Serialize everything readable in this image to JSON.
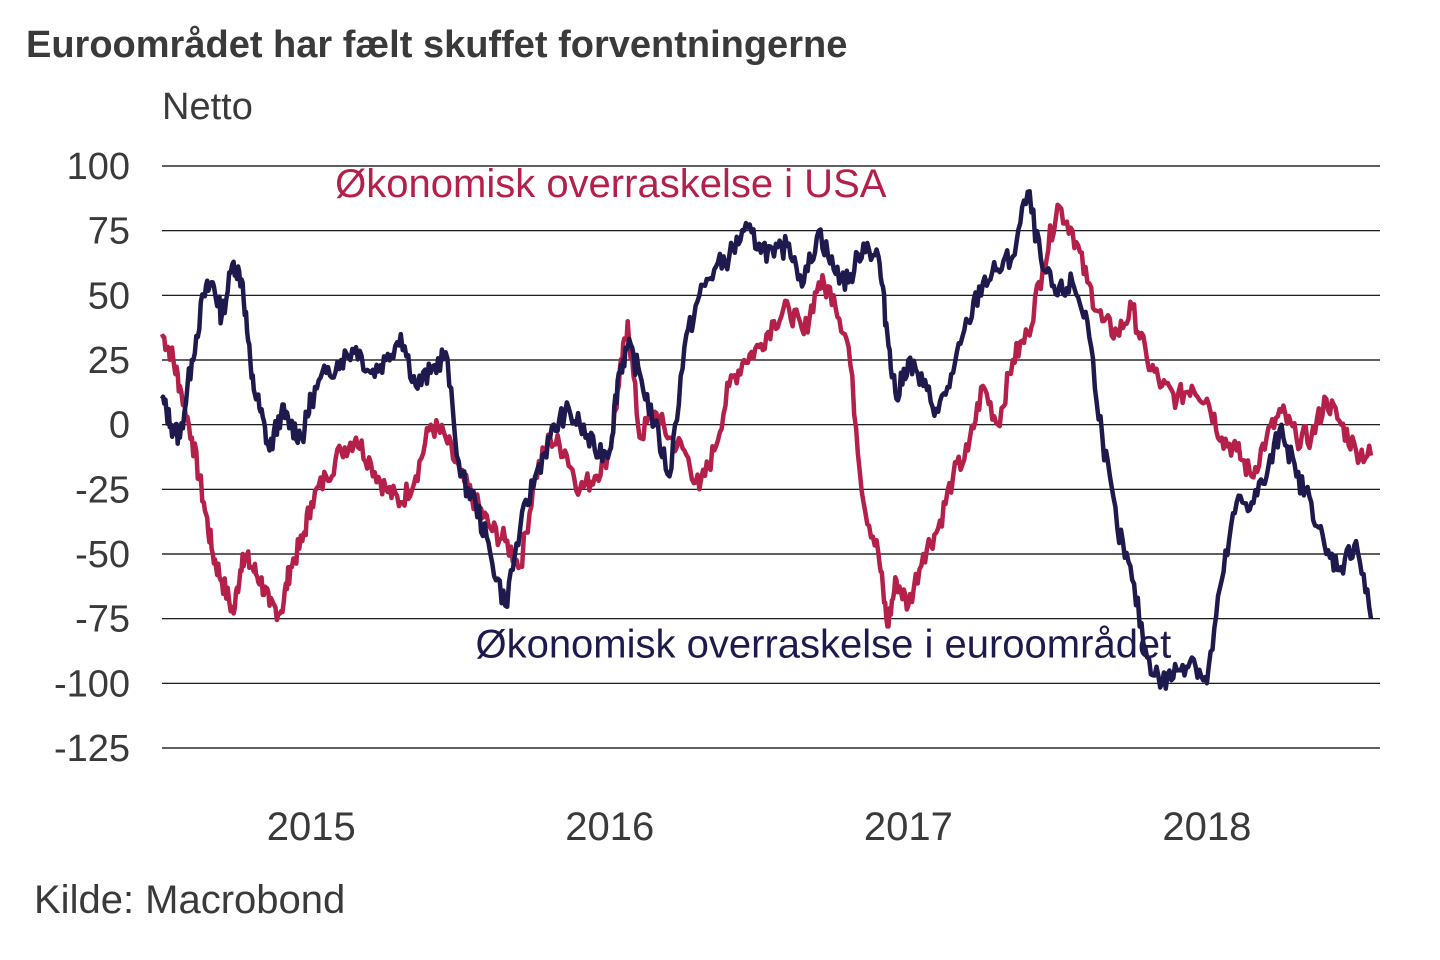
{
  "title": "Euroområdet har fælt skuffet forventningerne",
  "source": "Kilde: Macrobond",
  "chart_data": {
    "type": "line",
    "ylabel": "Netto",
    "ylim": [
      -125,
      100
    ],
    "yticks": [
      100,
      75,
      50,
      25,
      0,
      -25,
      -50,
      -75,
      -100,
      -125
    ],
    "xlim": [
      2014.5,
      2018.58
    ],
    "xticks": [
      {
        "label": "2015",
        "x": 2015.0
      },
      {
        "label": "2016",
        "x": 2016.0
      },
      {
        "label": "2017",
        "x": 2017.0
      },
      {
        "label": "2018",
        "x": 2018.0
      }
    ],
    "grid": true,
    "colors": {
      "usa": "#b5204a",
      "euro": "#1e1a4d"
    },
    "series": [
      {
        "key": "usa",
        "name": "Økonomisk overraskelse i USA",
        "x": [
          2014.5,
          2014.53,
          2014.56,
          2014.6,
          2014.64,
          2014.67,
          2014.7,
          2014.74,
          2014.77,
          2014.8,
          2014.83,
          2014.86,
          2014.9,
          2014.93,
          2014.97,
          2015.0,
          2015.05,
          2015.1,
          2015.15,
          2015.2,
          2015.25,
          2015.3,
          2015.35,
          2015.4,
          2015.45,
          2015.5,
          2015.55,
          2015.6,
          2015.65,
          2015.7,
          2015.75,
          2015.8,
          2015.85,
          2015.9,
          2015.95,
          2016.0,
          2016.03,
          2016.06,
          2016.1,
          2016.15,
          2016.2,
          2016.25,
          2016.3,
          2016.35,
          2016.4,
          2016.45,
          2016.5,
          2016.55,
          2016.6,
          2016.65,
          2016.7,
          2016.75,
          2016.8,
          2016.85,
          2016.9,
          2016.93,
          2016.96,
          2017.0,
          2017.05,
          2017.1,
          2017.15,
          2017.2,
          2017.25,
          2017.3,
          2017.35,
          2017.4,
          2017.45,
          2017.5,
          2017.55,
          2017.6,
          2017.65,
          2017.7,
          2017.75,
          2017.8,
          2017.85,
          2017.9,
          2017.95,
          2018.0,
          2018.05,
          2018.1,
          2018.15,
          2018.2,
          2018.25,
          2018.3,
          2018.35,
          2018.4,
          2018.45,
          2018.5,
          2018.55
        ],
        "y": [
          35,
          28,
          15,
          -5,
          -30,
          -50,
          -60,
          -73,
          -50,
          -55,
          -60,
          -70,
          -72,
          -55,
          -45,
          -30,
          -20,
          -10,
          -5,
          -15,
          -25,
          -30,
          -20,
          0,
          -5,
          -20,
          -30,
          -40,
          -45,
          -55,
          -20,
          -5,
          -10,
          -25,
          -20,
          -10,
          15,
          40,
          -5,
          5,
          -5,
          -10,
          -25,
          -10,
          15,
          25,
          30,
          40,
          45,
          35,
          55,
          50,
          30,
          -30,
          -50,
          -78,
          -60,
          -70,
          -50,
          -40,
          -20,
          -10,
          15,
          0,
          25,
          35,
          60,
          85,
          75,
          55,
          40,
          35,
          45,
          25,
          15,
          10,
          15,
          10,
          -5,
          -10,
          -20,
          -5,
          5,
          -5,
          -5,
          10,
          0,
          -10,
          -12
        ]
      },
      {
        "key": "euro",
        "name": "Økonomisk overraskelse i euroområdet",
        "x": [
          2014.5,
          2014.53,
          2014.56,
          2014.6,
          2014.64,
          2014.67,
          2014.7,
          2014.74,
          2014.77,
          2014.8,
          2014.83,
          2014.86,
          2014.9,
          2014.93,
          2014.97,
          2015.0,
          2015.05,
          2015.1,
          2015.15,
          2015.2,
          2015.25,
          2015.3,
          2015.35,
          2015.4,
          2015.45,
          2015.5,
          2015.55,
          2015.6,
          2015.65,
          2015.7,
          2015.75,
          2015.8,
          2015.85,
          2015.9,
          2015.95,
          2016.0,
          2016.03,
          2016.06,
          2016.1,
          2016.15,
          2016.2,
          2016.25,
          2016.3,
          2016.35,
          2016.4,
          2016.45,
          2016.5,
          2016.55,
          2016.6,
          2016.65,
          2016.7,
          2016.75,
          2016.8,
          2016.85,
          2016.9,
          2016.93,
          2016.96,
          2017.0,
          2017.05,
          2017.1,
          2017.15,
          2017.2,
          2017.25,
          2017.3,
          2017.35,
          2017.4,
          2017.45,
          2017.5,
          2017.55,
          2017.6,
          2017.65,
          2017.7,
          2017.75,
          2017.8,
          2017.85,
          2017.9,
          2017.95,
          2018.0,
          2018.05,
          2018.1,
          2018.15,
          2018.2,
          2018.25,
          2018.3,
          2018.35,
          2018.4,
          2018.45,
          2018.5,
          2018.55
        ],
        "y": [
          10,
          0,
          -5,
          25,
          50,
          55,
          42,
          63,
          55,
          18,
          5,
          -10,
          5,
          0,
          -5,
          10,
          20,
          25,
          30,
          20,
          25,
          35,
          15,
          20,
          28,
          -20,
          -30,
          -50,
          -70,
          -40,
          -20,
          -5,
          5,
          0,
          -10,
          -10,
          20,
          30,
          20,
          0,
          -20,
          30,
          50,
          60,
          65,
          75,
          70,
          65,
          70,
          55,
          75,
          60,
          55,
          70,
          65,
          35,
          10,
          25,
          15,
          5,
          20,
          40,
          55,
          60,
          65,
          90,
          60,
          50,
          55,
          40,
          -5,
          -40,
          -60,
          -90,
          -100,
          -95,
          -90,
          -100,
          -60,
          -30,
          -30,
          -20,
          0,
          -20,
          -30,
          -50,
          -55,
          -45,
          -75
        ]
      }
    ],
    "annotations": [
      {
        "text": "Økonomisk overraskelse i USA",
        "series": "usa",
        "x": 2015.08,
        "y": 88
      },
      {
        "text": "Økonomisk overraskelse i euroområdet",
        "series": "euro",
        "x": 2015.55,
        "y": -90
      }
    ]
  }
}
